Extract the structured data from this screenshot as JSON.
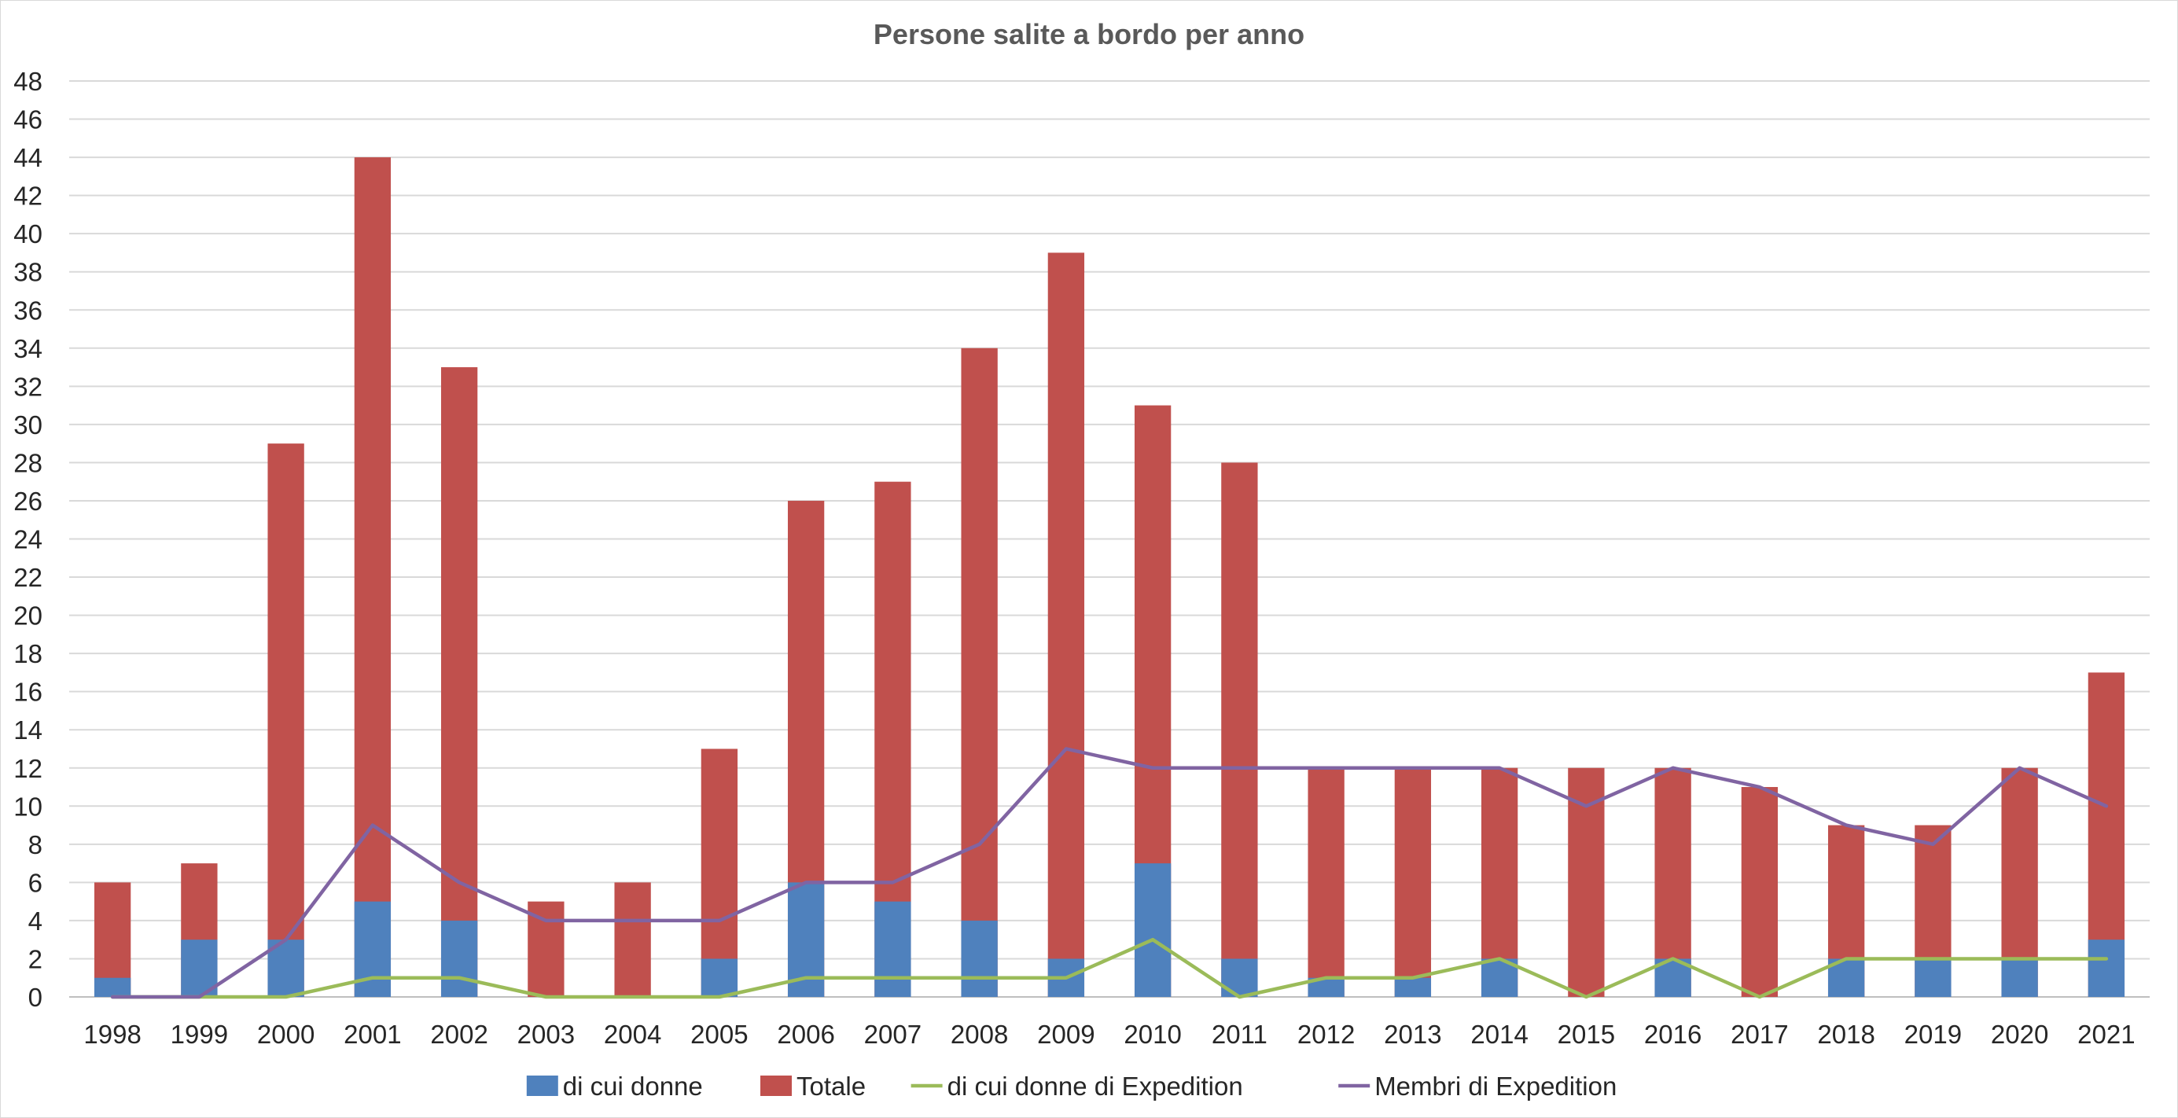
{
  "chart_data": {
    "type": "bar",
    "title": "Persone salite a bordo per anno",
    "categories": [
      "1998",
      "1999",
      "2000",
      "2001",
      "2002",
      "2003",
      "2004",
      "2005",
      "2006",
      "2007",
      "2008",
      "2009",
      "2010",
      "2011",
      "2012",
      "2013",
      "2014",
      "2015",
      "2016",
      "2017",
      "2018",
      "2019",
      "2020",
      "2021"
    ],
    "ylim": [
      0,
      48
    ],
    "yticks": [
      0,
      2,
      4,
      6,
      8,
      10,
      12,
      14,
      16,
      18,
      20,
      22,
      24,
      26,
      28,
      30,
      32,
      34,
      36,
      38,
      40,
      42,
      44,
      46,
      48
    ],
    "grid": true,
    "legend_position": "bottom",
    "bar_mode": "overlap",
    "series": [
      {
        "name": "di cui donne",
        "kind": "bar",
        "color": "#4f81bd",
        "values": [
          1,
          3,
          3,
          5,
          4,
          0,
          0,
          2,
          6,
          5,
          4,
          2,
          7,
          2,
          1,
          1,
          2,
          0,
          2,
          0,
          2,
          2,
          2,
          3
        ]
      },
      {
        "name": "Totale",
        "kind": "bar",
        "color": "#c0504d",
        "values": [
          6,
          7,
          29,
          44,
          33,
          5,
          6,
          13,
          26,
          27,
          34,
          39,
          31,
          28,
          12,
          12,
          12,
          12,
          12,
          11,
          9,
          9,
          12,
          17
        ]
      },
      {
        "name": "di cui donne di Expedition",
        "kind": "line",
        "color": "#9bbb59",
        "values": [
          0,
          0,
          0,
          1,
          1,
          0,
          0,
          0,
          1,
          1,
          1,
          1,
          3,
          0,
          1,
          1,
          2,
          0,
          2,
          0,
          2,
          2,
          2,
          2
        ]
      },
      {
        "name": "Membri di Expedition",
        "kind": "line",
        "color": "#8064a2",
        "values": [
          0,
          0,
          3,
          9,
          6,
          4,
          4,
          4,
          6,
          6,
          8,
          13,
          12,
          12,
          12,
          12,
          12,
          10,
          12,
          11,
          9,
          8,
          12,
          10
        ]
      }
    ]
  }
}
